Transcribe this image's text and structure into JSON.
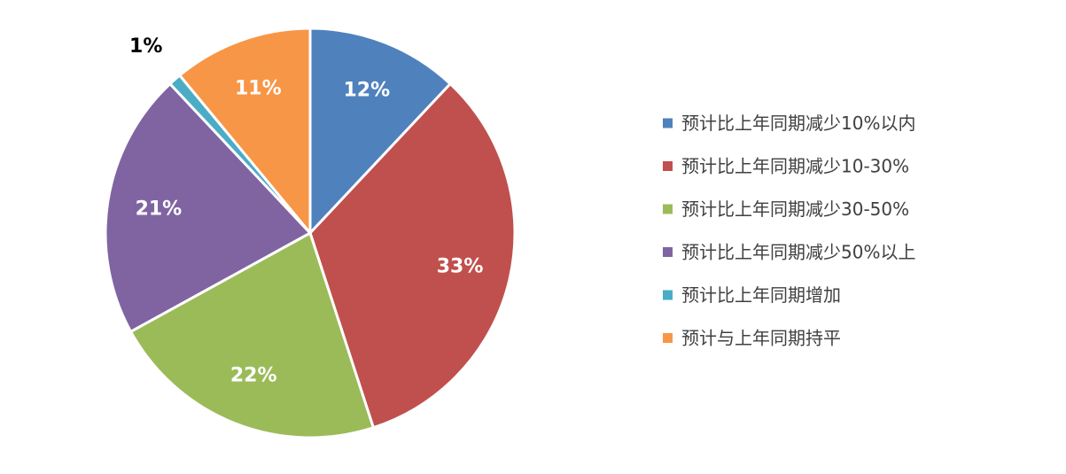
{
  "chart_data": {
    "type": "pie",
    "title": "",
    "categories": [
      "预计比上年同期减少10%以内",
      "预计比上年同期减少10-30%",
      "预计比上年同期减少30-50%",
      "预计比上年同期减少50%以上",
      "预计比上年同期增加",
      "预计与上年同期持平"
    ],
    "values": [
      12,
      33,
      22,
      21,
      1,
      11
    ],
    "data_labels": [
      "12%",
      "33%",
      "22%",
      "21%",
      "1%",
      "11%"
    ],
    "colors": [
      "#4F81BD",
      "#C0504D",
      "#9BBB59",
      "#8064A2",
      "#4BACC6",
      "#F79646"
    ],
    "label_colors": [
      "#FFFFFF",
      "#FFFFFF",
      "#FFFFFF",
      "#FFFFFF",
      "#000000",
      "#FFFFFF"
    ],
    "start_angle_deg": 0,
    "direction": "clockwise",
    "legend_position": "right"
  }
}
